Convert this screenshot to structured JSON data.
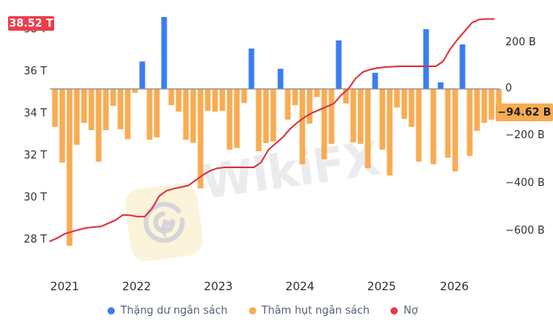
{
  "brand": {
    "watermark_text": "WikiFX"
  },
  "badges": {
    "debt_current": "38.52 T",
    "balance_current": "−94.62 B"
  },
  "axes": {
    "left_ticks": [
      "38 T",
      "36 T",
      "34 T",
      "32 T",
      "30 T",
      "28 T"
    ],
    "right_ticks": [
      "200 B",
      "0",
      "−200 B",
      "−400 B",
      "−600 B"
    ],
    "x_ticks": [
      "2021",
      "2022",
      "2023",
      "2024",
      "2025",
      "2026"
    ]
  },
  "legend": {
    "surplus": {
      "label": "Thặng dư ngân sách",
      "color": "#3b7cf3"
    },
    "deficit": {
      "label": "Thâm hụt ngân sách",
      "color": "#f8ac53"
    },
    "debt": {
      "label": "Nợ",
      "color": "#e8394a"
    }
  },
  "colors": {
    "surplus_bar": "#3b7cf3",
    "deficit_bar": "#f8ac53",
    "debt_line": "#d93840",
    "debt_badge_bg": "#ee3d49",
    "balance_badge_bg": "#f8ac53",
    "axis_line": "#8a8a8a",
    "tick_text": "#333333",
    "legend_text": "#55617a",
    "watermark": "#ebebee"
  },
  "chart_data": {
    "type": "combo_bar_line",
    "title": "",
    "x_ticks": [
      "2021",
      "2022",
      "2023",
      "2024",
      "2025",
      "2026"
    ],
    "x": [
      "2020-11",
      "2020-12",
      "2021-01",
      "2021-02",
      "2021-03",
      "2021-04",
      "2021-05",
      "2021-06",
      "2021-07",
      "2021-08",
      "2021-09",
      "2021-10",
      "2021-11",
      "2021-12",
      "2022-01",
      "2022-02",
      "2022-03",
      "2022-04",
      "2022-05",
      "2022-06",
      "2022-07",
      "2022-08",
      "2022-09",
      "2022-10",
      "2022-11",
      "2022-12",
      "2023-01",
      "2023-02",
      "2023-03",
      "2023-04",
      "2023-05",
      "2023-06",
      "2023-07",
      "2023-08",
      "2023-09",
      "2023-10",
      "2023-11",
      "2023-12",
      "2024-01",
      "2024-02",
      "2024-03",
      "2024-04",
      "2024-05",
      "2024-06",
      "2024-07",
      "2024-08",
      "2024-09",
      "2024-10",
      "2024-11",
      "2024-12",
      "2025-01",
      "2025-02",
      "2025-03",
      "2025-04",
      "2025-05",
      "2025-06",
      "2025-07",
      "2025-08",
      "2025-09",
      "2025-10",
      "2025-11",
      "2025-12"
    ],
    "bar_series": {
      "name_positive": "Thặng dư ngân sách",
      "name_negative": "Thâm hụt ngân sách",
      "axis": "right",
      "unit": "B",
      "values": [
        -162,
        -314,
        -669,
        -238,
        -145,
        -176,
        -310,
        -176,
        -72,
        -172,
        -214,
        -17,
        117,
        -217,
        -207,
        307,
        -69,
        -97,
        -217,
        -230,
        -424,
        -93,
        -97,
        -93,
        -259,
        -252,
        -60,
        172,
        -266,
        -231,
        -224,
        86,
        -131,
        -69,
        -321,
        -148,
        -34,
        -300,
        -234,
        207,
        -62,
        -228,
        -234,
        -338,
        69,
        -259,
        -369,
        -79,
        -128,
        -162,
        -310,
        255,
        -321,
        28,
        -293,
        -352,
        190,
        -286,
        -179,
        -145,
        -131,
        -94.62
      ]
    },
    "line_series": {
      "name": "Nợ",
      "axis": "left",
      "unit": "T",
      "values": [
        27.95,
        28.1,
        28.3,
        28.4,
        28.5,
        28.58,
        28.62,
        28.65,
        28.8,
        28.95,
        29.2,
        29.18,
        29.12,
        29.12,
        29.5,
        30.1,
        30.35,
        30.45,
        30.52,
        30.6,
        30.85,
        31.1,
        31.3,
        31.42,
        31.46,
        31.46,
        31.46,
        31.46,
        31.46,
        31.7,
        32.3,
        32.6,
        32.9,
        33.3,
        33.6,
        33.85,
        34.05,
        34.2,
        34.35,
        34.5,
        34.9,
        35.2,
        35.7,
        36.0,
        36.12,
        36.19,
        36.23,
        36.25,
        36.27,
        36.27,
        36.27,
        36.27,
        36.27,
        36.27,
        36.5,
        37.1,
        37.55,
        37.95,
        38.35,
        38.5,
        38.52,
        38.52
      ]
    },
    "left_axis": {
      "unit": "T",
      "ticks": [
        38,
        36,
        34,
        32,
        30,
        28
      ],
      "range": [
        27.4,
        38.8
      ]
    },
    "right_axis": {
      "unit": "B",
      "ticks": [
        200,
        0,
        -200,
        -400,
        -600
      ],
      "range": [
        -690,
        330
      ]
    },
    "latest": {
      "debt": "38.52 T",
      "balance": "−94.62 B"
    },
    "grid": "off",
    "legend_position": "bottom"
  }
}
